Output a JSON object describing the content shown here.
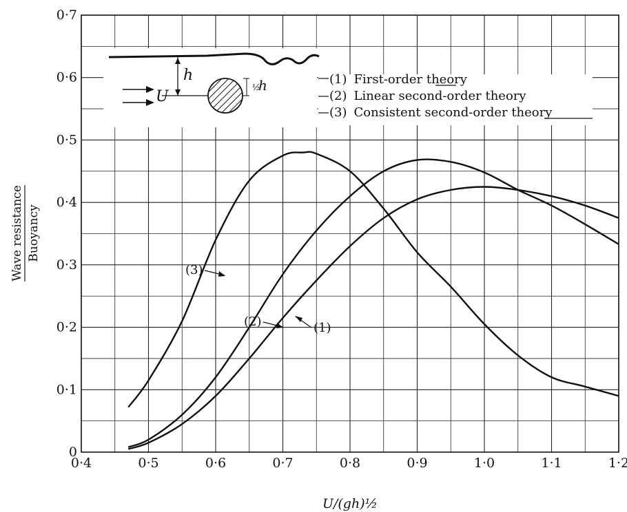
{
  "chart_data": {
    "type": "line",
    "xlabel": "U/(gh)½",
    "ylabel_numerator": "Wave resistance",
    "ylabel_denominator": "Buoyancy",
    "xlim": [
      0.4,
      1.2
    ],
    "ylim": [
      0,
      0.7
    ],
    "x_ticks": [
      0.4,
      0.5,
      0.6,
      0.7,
      0.8,
      0.9,
      1.0,
      1.1,
      1.2
    ],
    "x_tick_labels": [
      "0·4",
      "0·5",
      "0·6",
      "0·7",
      "0·8",
      "0·9",
      "1·0",
      "1·1",
      "1·2"
    ],
    "y_ticks": [
      0,
      0.1,
      0.2,
      0.3,
      0.4,
      0.5,
      0.6,
      0.7
    ],
    "y_tick_labels": [
      "0",
      "0·1",
      "0·2",
      "0·3",
      "0·4",
      "0·5",
      "0·6",
      "0·7"
    ],
    "grid": true,
    "series": [
      {
        "name": "First-order theory",
        "tag": "(1)",
        "x": [
          0.47,
          0.5,
          0.55,
          0.6,
          0.65,
          0.7,
          0.75,
          0.8,
          0.85,
          0.9,
          0.95,
          1.0,
          1.05,
          1.1,
          1.15,
          1.2
        ],
        "y": [
          0.005,
          0.015,
          0.045,
          0.09,
          0.15,
          0.215,
          0.275,
          0.33,
          0.375,
          0.405,
          0.42,
          0.425,
          0.42,
          0.41,
          0.395,
          0.375
        ]
      },
      {
        "name": "Linear second-order theory",
        "tag": "(2)",
        "x": [
          0.47,
          0.5,
          0.55,
          0.6,
          0.65,
          0.7,
          0.75,
          0.8,
          0.85,
          0.9,
          0.95,
          1.0,
          1.05,
          1.1,
          1.15,
          1.2
        ],
        "y": [
          0.008,
          0.02,
          0.06,
          0.12,
          0.2,
          0.285,
          0.355,
          0.41,
          0.45,
          0.468,
          0.465,
          0.448,
          0.42,
          0.395,
          0.365,
          0.333
        ]
      },
      {
        "name": "Consistent second-order theory",
        "tag": "(3)",
        "x": [
          0.47,
          0.5,
          0.55,
          0.6,
          0.65,
          0.7,
          0.73,
          0.75,
          0.8,
          0.85,
          0.9,
          0.95,
          1.0,
          1.05,
          1.1,
          1.15,
          1.2
        ],
        "y": [
          0.072,
          0.115,
          0.21,
          0.34,
          0.435,
          0.475,
          0.48,
          0.478,
          0.45,
          0.39,
          0.32,
          0.265,
          0.205,
          0.155,
          0.12,
          0.105,
          0.09
        ]
      }
    ],
    "legend": {
      "items": [
        {
          "tag": "(1)",
          "label": "First-order theory"
        },
        {
          "tag": "(2)",
          "label": "Linear second-order theory"
        },
        {
          "tag": "(3)",
          "label": "Consistent second-order theory"
        }
      ],
      "placement": "top"
    },
    "inset": {
      "depth_label": "h",
      "velocity_label": "U",
      "radius_fraction_label": "½",
      "radius_var_label": "h"
    }
  }
}
